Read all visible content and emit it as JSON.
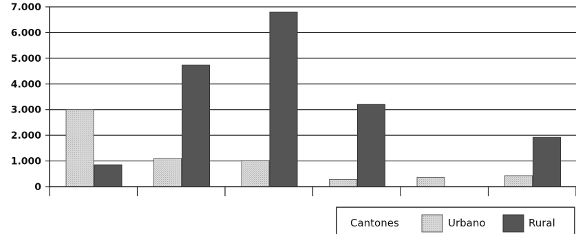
{
  "chart_data": {
    "type": "bar",
    "categories": [
      "",
      "",
      "",
      "",
      "",
      ""
    ],
    "yticks": [
      "0",
      "1.000",
      "2.000",
      "3.000",
      "4.000",
      "5.000",
      "6.000",
      "7.000"
    ],
    "ylim": [
      0,
      7000
    ],
    "grid": true,
    "legend_position": "bottom-right",
    "legend_title": "Cantones",
    "series": [
      {
        "name": "Urbano",
        "color": "#d4d4d4",
        "values": [
          3000,
          1100,
          1020,
          280,
          360,
          430
        ]
      },
      {
        "name": "Rural",
        "color": "#555555",
        "values": [
          850,
          4730,
          6800,
          3200,
          0,
          1920
        ]
      }
    ]
  }
}
